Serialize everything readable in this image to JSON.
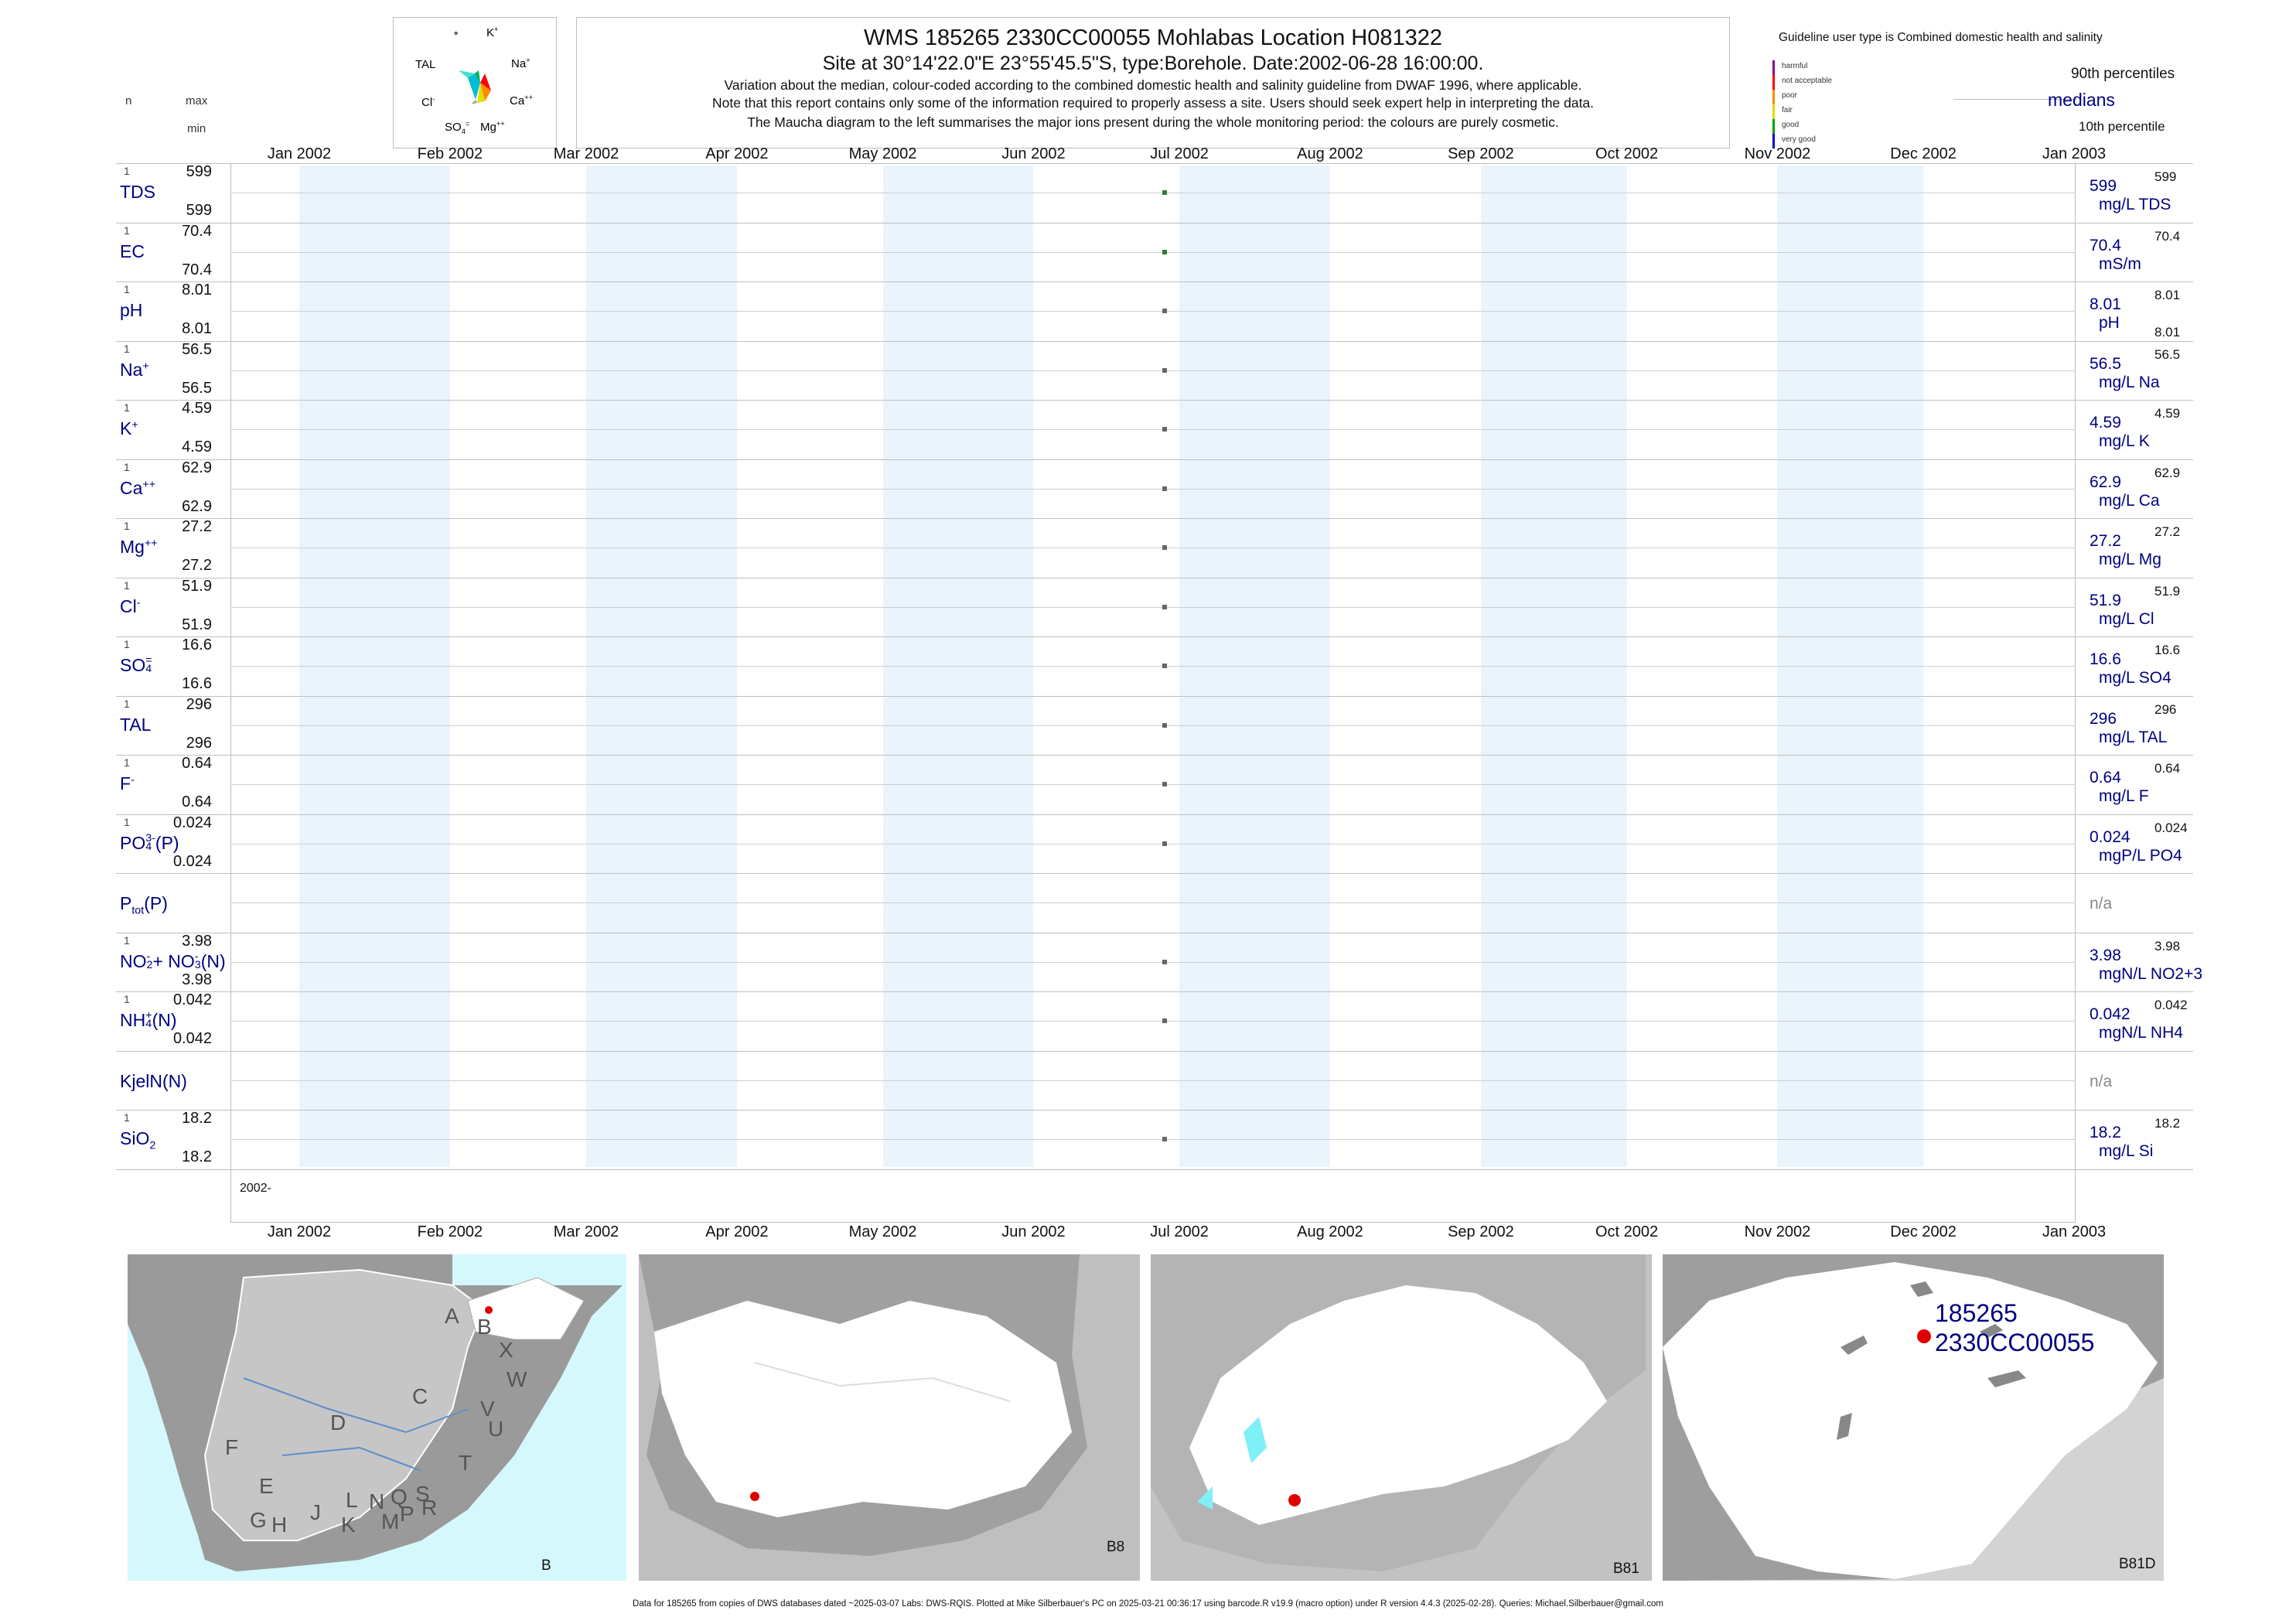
{
  "header": {
    "title": "WMS 185265 2330CC00055 Mohlabas Location H081322",
    "subtitle": "Site at 30°14'22.0\"E 23°55'45.5\"S, type:Borehole. Date:2002-06-28 16:00:00.",
    "note1": "Variation about the median,  colour-coded according to the combined domestic health and salinity guideline from DWAF 1996, where applicable.",
    "note2": "Note that this report contains only some of the information required to properly assess a site. Users should seek expert help in interpreting the data.",
    "note3": "The Maucha diagram to the left summarises the major ions present during the whole monitoring period: the colours are purely cosmetic."
  },
  "maucha": {
    "labels": {
      "star": "*",
      "k": "K",
      "tal": "TAL",
      "na": "Na",
      "cl": "Cl",
      "ca": "Ca",
      "so4": "SO",
      "mg": "Mg"
    },
    "colors": {
      "k": "#00b050",
      "na": "#ff0000",
      "ca": "#ff8c00",
      "mg": "#e0e000",
      "so4": "#a0a0a0",
      "cl": "#00bcd4",
      "tal": "#40e0d0"
    }
  },
  "left_header": {
    "n": "n",
    "max": "max",
    "min": "min"
  },
  "legend": {
    "guideline": "Guideline user type is Combined domestic health and salinity",
    "classes": [
      {
        "label": "harmful",
        "color": "#8b008b"
      },
      {
        "label": "not acceptable",
        "color": "#ff0000"
      },
      {
        "label": "poor",
        "color": "#ff8c00"
      },
      {
        "label": "fair",
        "color": "#e8d800"
      },
      {
        "label": "good",
        "color": "#00a000"
      },
      {
        "label": "very good",
        "color": "#0000cd"
      }
    ],
    "p90": "90th percentiles",
    "medians": "medians",
    "p10": "10th percentile"
  },
  "axis": {
    "months": [
      "Jan 2002",
      "Feb 2002",
      "Mar 2002",
      "Apr 2002",
      "May 2002",
      "Jun 2002",
      "Jul 2002",
      "Aug 2002",
      "Sep 2002",
      "Oct 2002",
      "Nov 2002",
      "Dec 2002",
      "Jan 2003"
    ],
    "year_label": "2002-"
  },
  "chart_data": {
    "type": "scatter",
    "x_range": [
      "2002-01-01",
      "2003-01-01"
    ],
    "sample_date": "2002-06-28",
    "series": [
      {
        "label": "TDS",
        "n": "1",
        "max": "599",
        "min": "599",
        "median": "599",
        "unit": "mg/L TDS",
        "p90": "599",
        "p10": "",
        "value": 599,
        "color": "#2e7d32"
      },
      {
        "label": "EC",
        "n": "1",
        "max": "70.4",
        "min": "70.4",
        "median": "70.4",
        "unit": "mS/m",
        "p90": "70.4",
        "p10": "",
        "value": 70.4,
        "color": "#2e7d32"
      },
      {
        "label": "pH",
        "n": "1",
        "max": "8.01",
        "min": "8.01",
        "median": "8.01",
        "unit": "pH",
        "p90": "8.01",
        "p10": "8.01",
        "value": 8.01,
        "color": "#666666"
      },
      {
        "label": "Na",
        "sup": "+",
        "n": "1",
        "max": "56.5",
        "min": "56.5",
        "median": "56.5",
        "unit": "mg/L Na",
        "p90": "56.5",
        "p10": "",
        "value": 56.5,
        "color": "#666666"
      },
      {
        "label": "K",
        "sup": "+",
        "n": "1",
        "max": "4.59",
        "min": "4.59",
        "median": "4.59",
        "unit": "mg/L K",
        "p90": "4.59",
        "p10": "",
        "value": 4.59,
        "color": "#666666"
      },
      {
        "label": "Ca",
        "sup": "++",
        "n": "1",
        "max": "62.9",
        "min": "62.9",
        "median": "62.9",
        "unit": "mg/L Ca",
        "p90": "62.9",
        "p10": "",
        "value": 62.9,
        "color": "#666666"
      },
      {
        "label": "Mg",
        "sup": "++",
        "n": "1",
        "max": "27.2",
        "min": "27.2",
        "median": "27.2",
        "unit": "mg/L Mg",
        "p90": "27.2",
        "p10": "",
        "value": 27.2,
        "color": "#666666"
      },
      {
        "label": "Cl",
        "sup": "-",
        "n": "1",
        "max": "51.9",
        "min": "51.9",
        "median": "51.9",
        "unit": "mg/L Cl",
        "p90": "51.9",
        "p10": "",
        "value": 51.9,
        "color": "#666666"
      },
      {
        "label": "SO",
        "sub": "4",
        "sup": "=",
        "n": "1",
        "max": "16.6",
        "min": "16.6",
        "median": "16.6",
        "unit": "mg/L SO4",
        "p90": "16.6",
        "p10": "",
        "value": 16.6,
        "color": "#666666"
      },
      {
        "label": "TAL",
        "n": "1",
        "max": "296",
        "min": "296",
        "median": "296",
        "unit": "mg/L TAL",
        "p90": "296",
        "p10": "",
        "value": 296,
        "color": "#666666"
      },
      {
        "label": "F",
        "sup": "-",
        "n": "1",
        "max": "0.64",
        "min": "0.64",
        "median": "0.64",
        "unit": "mg/L F",
        "p90": "0.64",
        "p10": "",
        "value": 0.64,
        "color": "#666666"
      },
      {
        "label": "PO",
        "sub": "4",
        "sup": "3-",
        "tail": "(P)",
        "n": "1",
        "max": "0.024",
        "min": "0.024",
        "median": "0.024",
        "unit": "mgP/L PO4",
        "p90": "0.024",
        "p10": "",
        "value": 0.024,
        "color": "#666666"
      },
      {
        "label": "P",
        "sub": "tot",
        "tail": "(P)",
        "n": "",
        "max": "",
        "min": "",
        "median": "n/a",
        "unit": "",
        "p90": "",
        "p10": "",
        "value": null,
        "color": "#666666"
      },
      {
        "label": "NO",
        "sub": "2",
        "sup": "-",
        "tail": "+ NO",
        "sub2": "3",
        "sup2": "-",
        "tail2": "(N)",
        "n": "1",
        "max": "3.98",
        "min": "3.98",
        "median": "3.98",
        "unit": "mgN/L NO2+3",
        "p90": "3.98",
        "p10": "",
        "value": 3.98,
        "color": "#666666"
      },
      {
        "label": "NH",
        "sub": "4",
        "sup": "+",
        "tail": "(N)",
        "n": "1",
        "max": "0.042",
        "min": "0.042",
        "median": "0.042",
        "unit": "mgN/L NH4",
        "p90": "0.042",
        "p10": "",
        "value": 0.042,
        "color": "#666666"
      },
      {
        "label": "KjelN(N)",
        "n": "",
        "max": "",
        "min": "",
        "median": "n/a",
        "unit": "",
        "p90": "",
        "p10": "",
        "value": null,
        "color": "#666666"
      },
      {
        "label": "SiO",
        "sub": "2",
        "n": "1",
        "max": "18.2",
        "min": "18.2",
        "median": "18.2",
        "unit": "mg/L Si",
        "p90": "18.2",
        "p10": "",
        "value": 18.2,
        "color": "#666666"
      }
    ]
  },
  "maps": {
    "m1": {
      "label": "B",
      "regions": [
        "A",
        "B",
        "X",
        "W",
        "C",
        "V",
        "U",
        "D",
        "T",
        "F",
        "E",
        "L",
        "N",
        "Q",
        "S",
        "G",
        "H",
        "J",
        "K",
        "M",
        "P",
        "R"
      ]
    },
    "m2": {
      "label": "B8"
    },
    "m3": {
      "label": "B81"
    },
    "m4": {
      "label": "B81D",
      "site_id": "185265",
      "site_code": "2330CC00055"
    }
  },
  "footer": "Data for 185265 from copies of DWS databases dated ~2025-03-07 Labs: DWS-RQIS. Plotted at Mike Silberbauer's PC on 2025-03-21 00:36:17 using barcode.R v19.9 (macro option) under R version 4.4.3 (2025-02-28). Queries: Michael.Silberbauer@gmail.com"
}
